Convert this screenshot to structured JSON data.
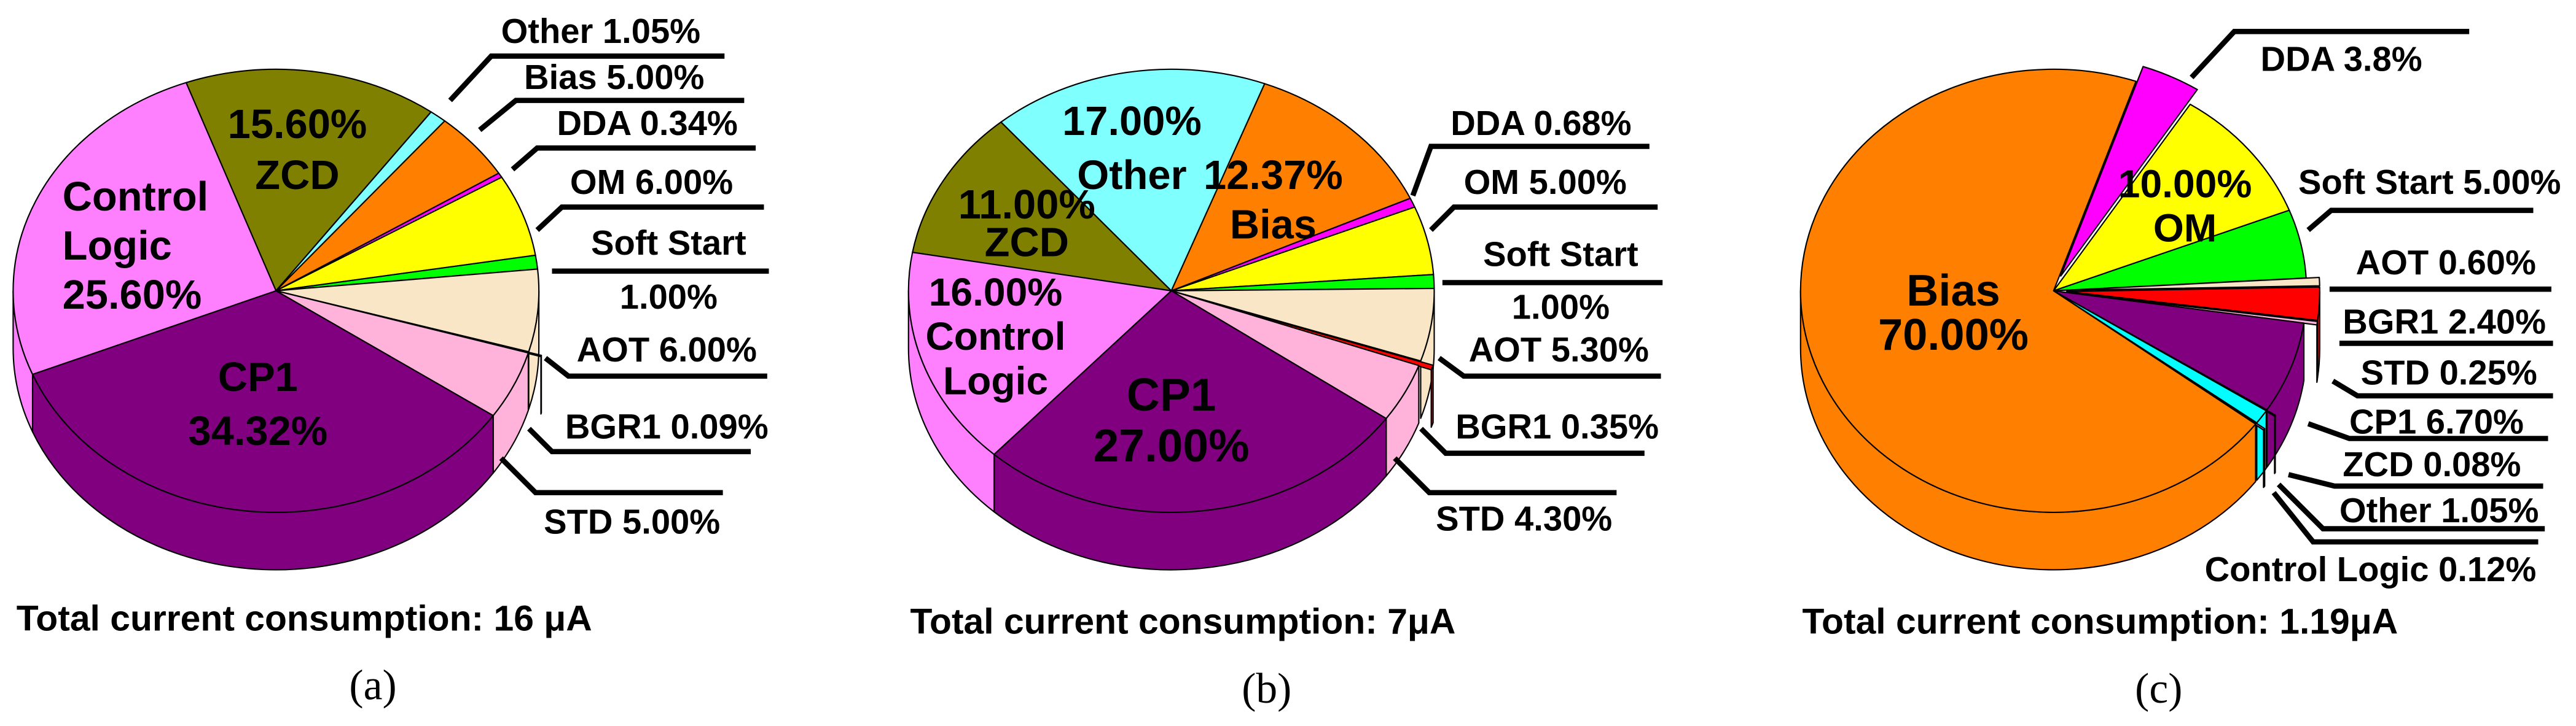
{
  "chart_data": [
    {
      "type": "pie",
      "title": "Total current consumption: 16 μA",
      "caption": "(a)",
      "slices": [
        {
          "name": "ZCD",
          "value": 15.6,
          "color": "#808000",
          "label_lines": [
            "15.60%",
            "ZCD"
          ]
        },
        {
          "name": "Other",
          "value": 1.05,
          "color": "#80ffff",
          "label_lines": [
            "Other 1.05%"
          ]
        },
        {
          "name": "Bias",
          "value": 5.0,
          "color": "#ff8000",
          "label_lines": [
            "Bias 5.00%"
          ]
        },
        {
          "name": "DDA",
          "value": 0.34,
          "color": "#ff00ff",
          "label_lines": [
            "DDA 0.34%"
          ]
        },
        {
          "name": "OM",
          "value": 6.0,
          "color": "#ffff00",
          "label_lines": [
            "OM 6.00%"
          ]
        },
        {
          "name": "Soft Start",
          "value": 1.0,
          "color": "#00ff00",
          "label_lines": [
            "Soft Start",
            "1.00%"
          ]
        },
        {
          "name": "AOT",
          "value": 6.0,
          "color": "#f8e6c6",
          "label_lines": [
            "AOT 6.00%"
          ]
        },
        {
          "name": "BGR1",
          "value": 0.09,
          "color": "#ff0000",
          "label_lines": [
            "BGR1 0.09%"
          ]
        },
        {
          "name": "STD",
          "value": 5.0,
          "color": "#ffb3da",
          "label_lines": [
            "STD 5.00%"
          ]
        },
        {
          "name": "CP1",
          "value": 34.32,
          "color": "#800080",
          "label_lines": [
            "CP1",
            "34.32%"
          ]
        },
        {
          "name": "Control Logic",
          "value": 25.6,
          "color": "#ff80ff",
          "label_lines": [
            "Control",
            "Logic",
            "25.60%"
          ]
        }
      ]
    },
    {
      "type": "pie",
      "title": "Total current consumption: 7μA",
      "caption": "(b)",
      "slices": [
        {
          "name": "ZCD",
          "value": 11.0,
          "color": "#808000",
          "label_lines": [
            "11.00%",
            "ZCD"
          ]
        },
        {
          "name": "Other",
          "value": 17.0,
          "color": "#80ffff",
          "label_lines": [
            "17.00%",
            "Other"
          ]
        },
        {
          "name": "Bias",
          "value": 12.37,
          "color": "#ff8000",
          "label_lines": [
            "12.37%",
            "Bias"
          ]
        },
        {
          "name": "DDA",
          "value": 0.68,
          "color": "#ff00ff",
          "label_lines": [
            "DDA 0.68%"
          ]
        },
        {
          "name": "OM",
          "value": 5.0,
          "color": "#ffff00",
          "label_lines": [
            "OM 5.00%"
          ]
        },
        {
          "name": "Soft Start",
          "value": 1.0,
          "color": "#00ff00",
          "label_lines": [
            "Soft Start",
            "1.00%"
          ]
        },
        {
          "name": "AOT",
          "value": 5.3,
          "color": "#f8e6c6",
          "label_lines": [
            "AOT 5.30%"
          ]
        },
        {
          "name": "BGR1",
          "value": 0.35,
          "color": "#ff0000",
          "label_lines": [
            "BGR1 0.35%"
          ]
        },
        {
          "name": "STD",
          "value": 4.3,
          "color": "#ffb3da",
          "label_lines": [
            "STD 4.30%"
          ]
        },
        {
          "name": "CP1",
          "value": 27.0,
          "color": "#800080",
          "label_lines": [
            "CP1",
            "27.00%"
          ]
        },
        {
          "name": "Control Logic",
          "value": 16.0,
          "color": "#ff80ff",
          "label_lines": [
            "16.00%",
            "Control",
            "Logic"
          ]
        }
      ]
    },
    {
      "type": "pie",
      "title": "Total current consumption: 1.19μA",
      "caption": "(c)",
      "slices": [
        {
          "name": "DDA",
          "value": 3.8,
          "color": "#ff00ff",
          "label_lines": [
            "DDA 3.8%"
          ]
        },
        {
          "name": "OM",
          "value": 10.0,
          "color": "#ffff00",
          "label_lines": [
            "10.00%",
            "OM"
          ]
        },
        {
          "name": "Soft Start",
          "value": 5.0,
          "color": "#00ff00",
          "label_lines": [
            "Soft Start 5.00%"
          ]
        },
        {
          "name": "AOT",
          "value": 0.6,
          "color": "#f8e6c6",
          "label_lines": [
            "AOT 0.60%"
          ]
        },
        {
          "name": "BGR1",
          "value": 2.4,
          "color": "#ff0000",
          "label_lines": [
            "BGR1 2.40%"
          ]
        },
        {
          "name": "STD",
          "value": 0.25,
          "color": "#ffb3da",
          "label_lines": [
            "STD 0.25%"
          ]
        },
        {
          "name": "CP1",
          "value": 6.7,
          "color": "#800080",
          "label_lines": [
            "CP1 6.70%"
          ]
        },
        {
          "name": "ZCD",
          "value": 0.08,
          "color": "#808000",
          "label_lines": [
            "ZCD 0.08%"
          ]
        },
        {
          "name": "Other",
          "value": 1.05,
          "color": "#00ffff",
          "label_lines": [
            "Other 1.05%"
          ]
        },
        {
          "name": "Control Logic",
          "value": 0.12,
          "color": "#ff80ff",
          "label_lines": [
            "Control Logic 0.12%"
          ]
        },
        {
          "name": "Bias",
          "value": 70.0,
          "color": "#ff8000",
          "label_lines": [
            "Bias",
            "70.00%"
          ]
        }
      ]
    }
  ]
}
